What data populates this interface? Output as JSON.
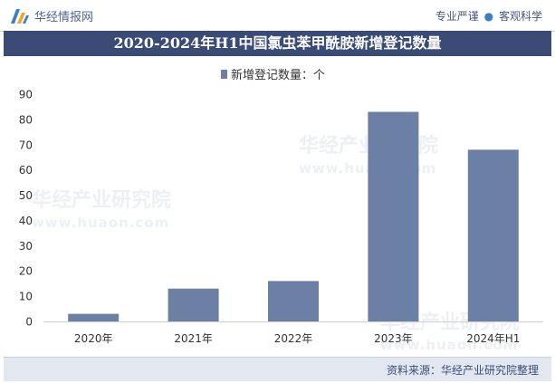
{
  "header": {
    "brand": "华经情报网",
    "slogan_left": "专业严谨",
    "slogan_right": "客观科学"
  },
  "chart_data": {
    "type": "bar",
    "title": "2020-2024年H1中国氯虫苯甲酰胺新增登记数量",
    "categories": [
      "2020年",
      "2021年",
      "2022年",
      "2023年",
      "2024年H1"
    ],
    "series": [
      {
        "name": "新增登记数量：个",
        "values": [
          3,
          13,
          16,
          83,
          68
        ]
      }
    ],
    "ylim": [
      0,
      90
    ],
    "yticks": [
      0,
      10,
      20,
      30,
      40,
      50,
      60,
      70,
      80,
      90
    ],
    "legend_position": "top-center",
    "grid": false,
    "bar_color": "#6c7fa5"
  },
  "footer": {
    "source": "资料来源：华经产业研究院整理"
  },
  "watermark": {
    "text": "华经产业研究院",
    "url": "www.huaon.com"
  },
  "colors": {
    "title_bg": "#3a4b75",
    "footer_bg": "#e3e8f0",
    "bar": "#6c7fa5"
  }
}
